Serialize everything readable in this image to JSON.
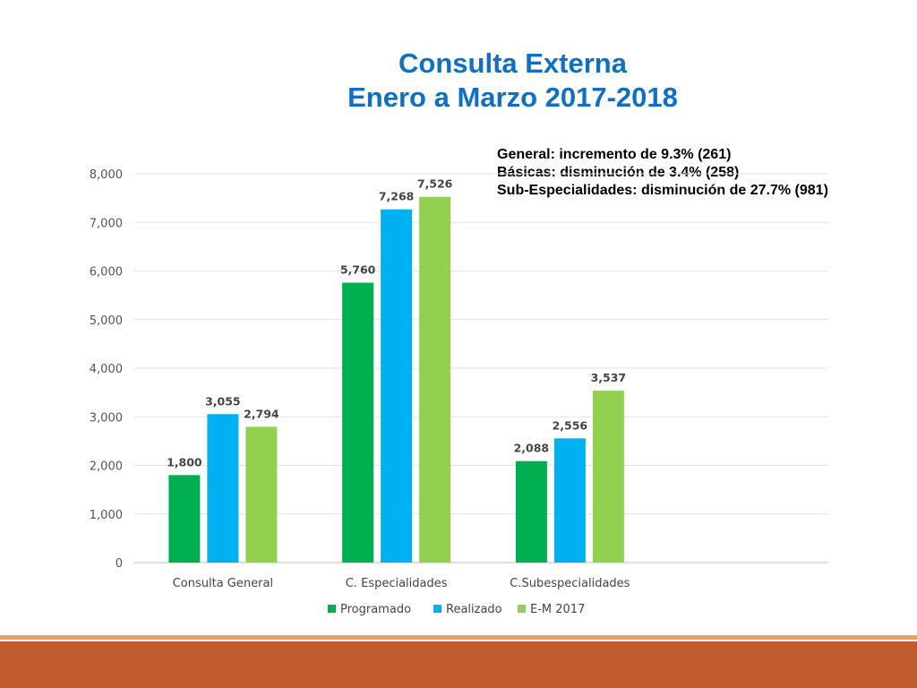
{
  "slide": {
    "title_line1": "Consulta Externa",
    "title_line2": "Enero a Marzo 2017-2018",
    "notes": [
      "General: incremento de 9.3% (261)",
      "Básicas: disminución de 3.4% (258)",
      "Sub-Especialidades: disminución de 27.7% (981)"
    ],
    "colors": {
      "title": "#0f6fc6",
      "footer": "#bf5b2d",
      "footer_line": "#e8a15a"
    }
  },
  "chart_data": {
    "type": "bar",
    "title": "",
    "xlabel": "",
    "ylabel": "",
    "categories": [
      "Consulta General",
      "C. Especialidades",
      "C.Subespecialidades"
    ],
    "series": [
      {
        "name": "Programado",
        "color": "#00b050",
        "values": [
          1800,
          5760,
          2088
        ]
      },
      {
        "name": "Realizado",
        "color": "#00b0f0",
        "values": [
          3055,
          7268,
          2556
        ]
      },
      {
        "name": "E-M 2017",
        "color": "#92d050",
        "values": [
          2794,
          7526,
          3537
        ]
      }
    ],
    "data_labels": [
      [
        "1,800",
        "5,760",
        "2,088"
      ],
      [
        "3,055",
        "7,268",
        "2,556"
      ],
      [
        "2,794",
        "7,526",
        "3,537"
      ]
    ],
    "y_ticks": [
      0,
      1000,
      2000,
      3000,
      4000,
      5000,
      6000,
      7000,
      8000
    ],
    "y_tick_labels": [
      "0",
      "1,000",
      "2,000",
      "3,000",
      "4,000",
      "5,000",
      "6,000",
      "7,000",
      "8,000"
    ],
    "ylim": [
      0,
      8000
    ],
    "grid": true,
    "legend": "bottom"
  }
}
